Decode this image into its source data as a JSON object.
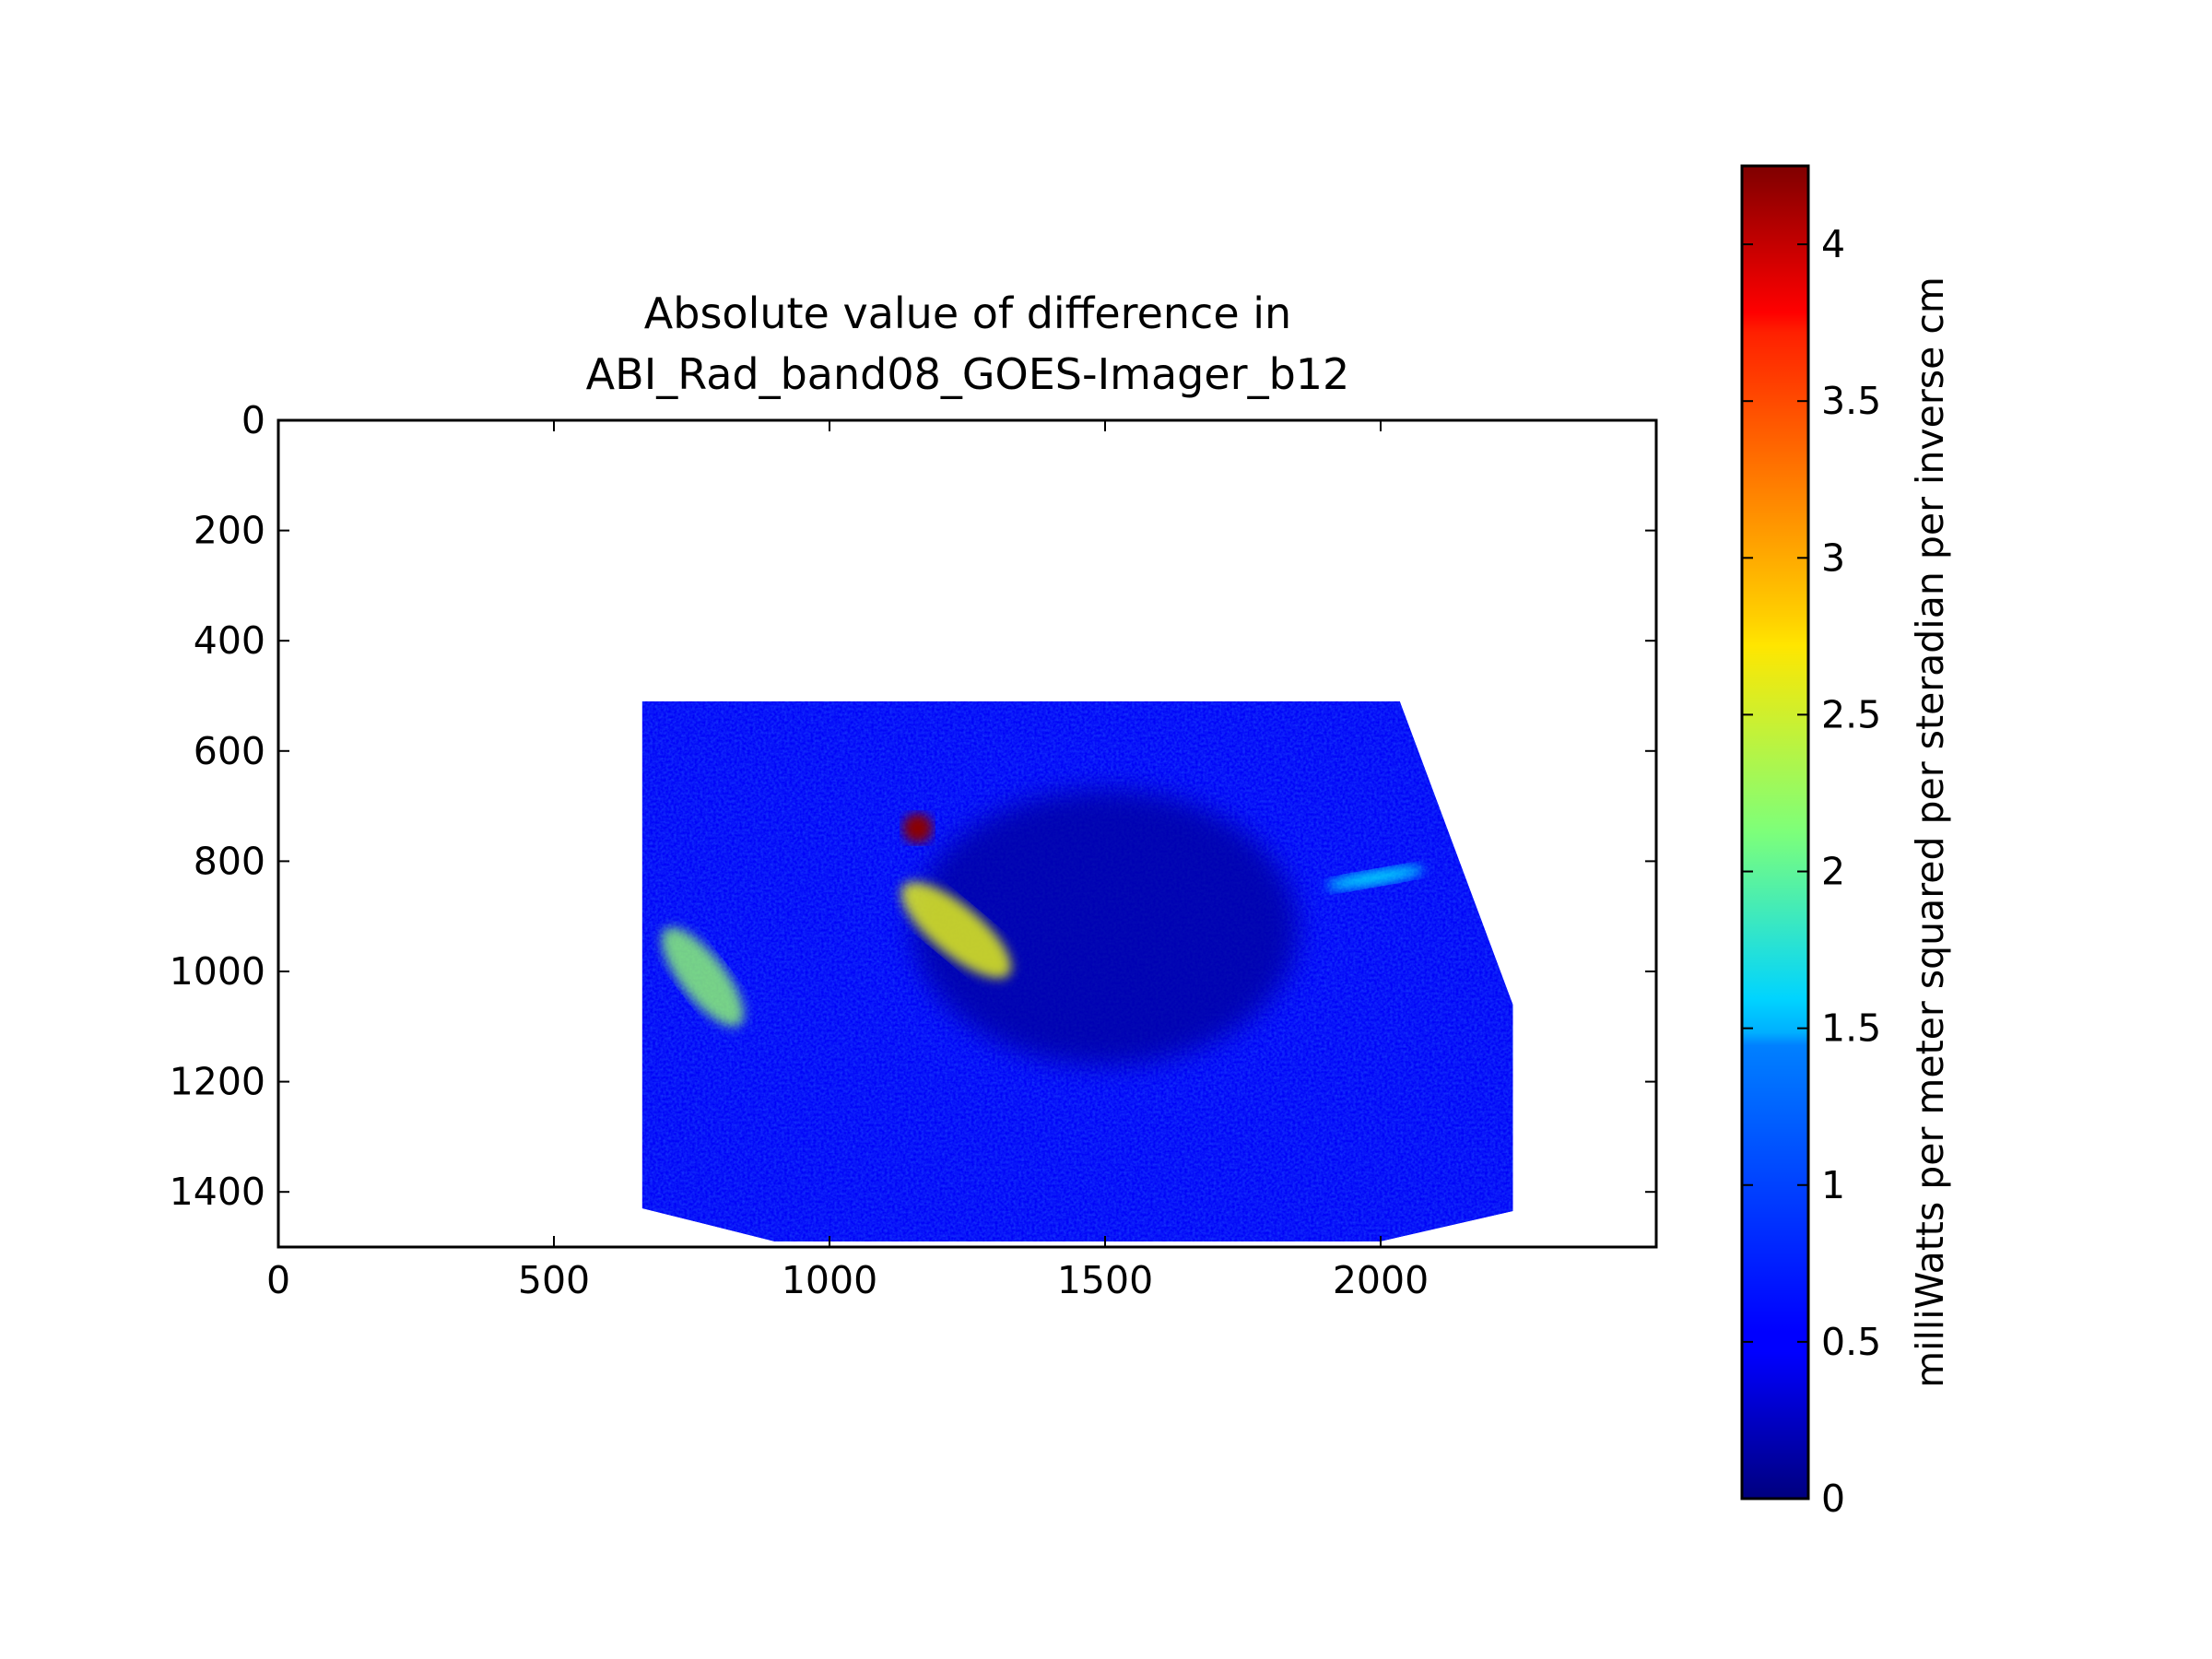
{
  "chart_data": {
    "type": "heatmap",
    "title_lines": [
      "Absolute value of difference in",
      "ABI_Rad_band08_GOES-Imager_b12"
    ],
    "xlim": [
      0,
      2500
    ],
    "ylim": [
      0,
      1500
    ],
    "y_inverted": true,
    "x_ticks": [
      0,
      500,
      1000,
      1500,
      2000
    ],
    "y_ticks": [
      0,
      200,
      400,
      600,
      800,
      1000,
      1200,
      1400
    ],
    "data_extent": {
      "x_range": [
        660,
        2240
      ],
      "y_range": [
        510,
        1490
      ],
      "polygon": [
        [
          660,
          510
        ],
        [
          2035,
          510
        ],
        [
          2240,
          1060
        ],
        [
          2240,
          1435
        ],
        [
          2000,
          1490
        ],
        [
          900,
          1490
        ],
        [
          660,
          1430
        ]
      ]
    },
    "colormap": "jet",
    "colorbar": {
      "min": 0,
      "max": 4.25,
      "ticks": [
        "0",
        "0.5",
        "1",
        "1.5",
        "2",
        "2.5",
        "3",
        "3.5",
        "4"
      ],
      "label": "milliWatts per meter squared per steradian per inverse cm"
    },
    "features": [
      {
        "type": "hotspot",
        "x": 1160,
        "y": 740,
        "value": 4.2
      },
      {
        "type": "streak",
        "x": [
          1130,
          1330
        ],
        "y": [
          800,
          1050
        ],
        "value": 2.6
      },
      {
        "type": "band",
        "x": [
          680,
          860
        ],
        "y": [
          900,
          1120
        ],
        "value": 2.2
      },
      {
        "type": "region",
        "x": [
          1900,
          2080
        ],
        "y": [
          800,
          860
        ],
        "value": 1.6
      }
    ],
    "background_value": 0.5,
    "grid": false
  }
}
